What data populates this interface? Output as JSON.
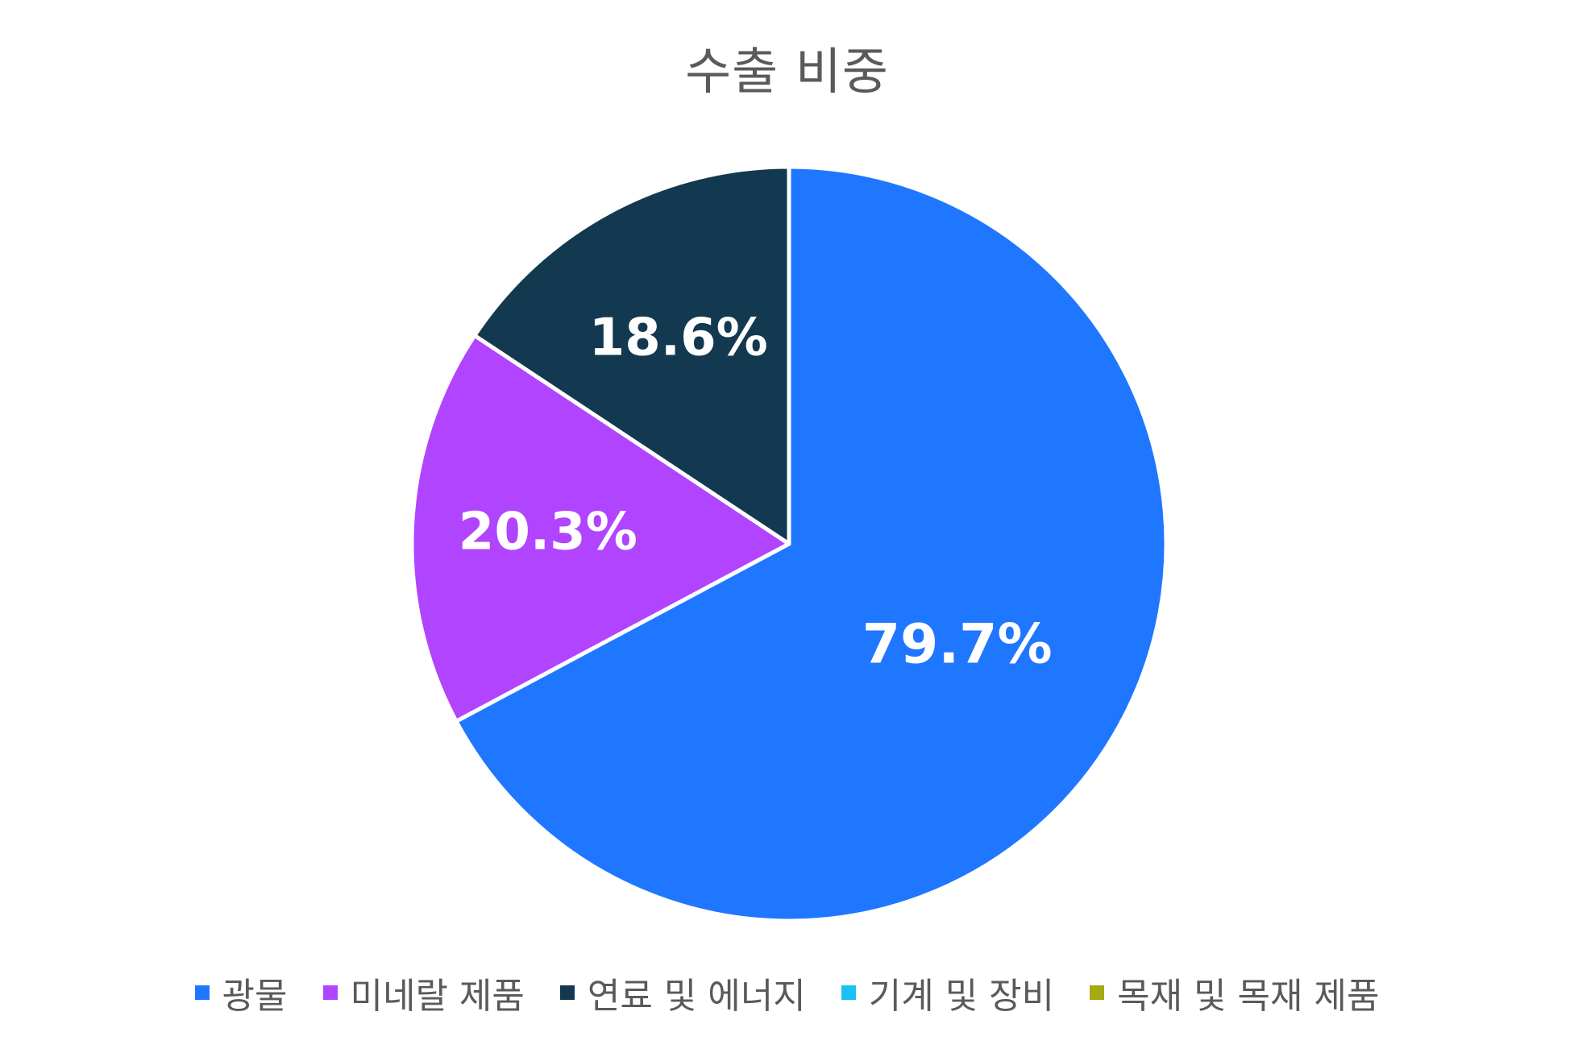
{
  "chart_data": {
    "type": "pie",
    "title": "수출 비중",
    "slices": [
      {
        "name": "광물",
        "value": 79.7,
        "label": "79.7%",
        "color": "#1f77ff"
      },
      {
        "name": "미네랄 제품",
        "value": 20.3,
        "label": "20.3%",
        "color": "#b044ff"
      },
      {
        "name": "연료 및 에너지",
        "value": 18.6,
        "label": "18.6%",
        "color": "#12394f"
      },
      {
        "name": "기계 및 장비",
        "value": 0,
        "label": "",
        "color": "#19c2f0"
      },
      {
        "name": "목재 및 목재 제품",
        "value": 0,
        "label": "",
        "color": "#a8a810"
      }
    ],
    "legend": {
      "position": "bottom",
      "entries": [
        "광물",
        "미네랄 제품",
        "연료 및 에너지",
        "기계 및 장비",
        "목재 및 목재 제품"
      ]
    }
  }
}
